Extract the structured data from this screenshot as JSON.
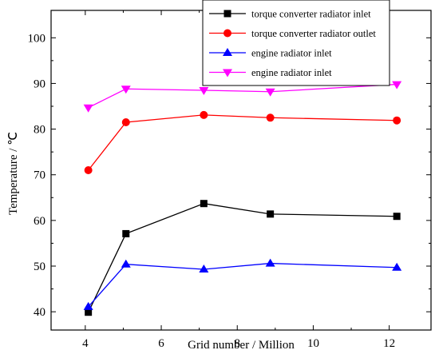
{
  "chart_data": {
    "type": "line",
    "xlabel": "Grid number / Million",
    "ylabel": "Temperature / ℃",
    "xlim": [
      3.1,
      13.1
    ],
    "ylim": [
      36,
      106
    ],
    "xticks": [
      "4",
      "6",
      "8",
      "10",
      "12"
    ],
    "yticks": [
      "40",
      "50",
      "60",
      "70",
      "80",
      "90",
      "100"
    ],
    "legend_position": "top-right",
    "grid": false,
    "series": [
      {
        "name": "torque converter radiator inlet",
        "color": "#000000",
        "marker": "square",
        "x": [
          4.08,
          5.07,
          7.12,
          8.87,
          12.2
        ],
        "y": [
          39.9,
          57.1,
          63.7,
          61.4,
          60.9
        ]
      },
      {
        "name": "torque converter radiator outlet",
        "color": "#ff0000",
        "marker": "circle",
        "x": [
          4.08,
          5.07,
          7.12,
          8.87,
          12.2
        ],
        "y": [
          71.0,
          81.5,
          83.1,
          82.5,
          81.9
        ]
      },
      {
        "name": "engine radiator inlet",
        "color": "#0000ff",
        "marker": "triangle-up",
        "x": [
          4.08,
          5.07,
          7.12,
          8.87,
          12.2
        ],
        "y": [
          41.1,
          50.4,
          49.3,
          50.6,
          49.7
        ]
      },
      {
        "name": "engine radiator inlet",
        "color": "#ff00ff",
        "marker": "triangle-down",
        "x": [
          4.08,
          5.07,
          7.12,
          8.87,
          12.2
        ],
        "y": [
          84.7,
          88.8,
          88.5,
          88.2,
          89.8
        ]
      }
    ]
  }
}
